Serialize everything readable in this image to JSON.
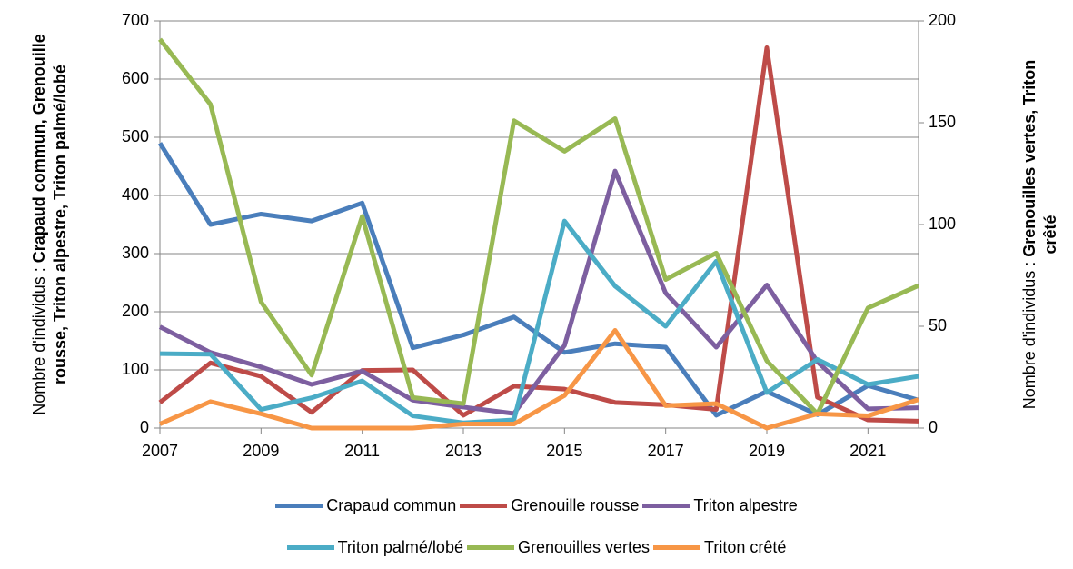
{
  "chart_data": {
    "type": "line",
    "y_label_prefix": "Nombre d'individus  : ",
    "y_label_bold": "Crapaud commun, Grenouille rousse, Triton alpestre, Triton palmé/lobé",
    "y2_label_prefix": "Nombre d'individus : ",
    "y2_label_bold": "Grenouilles vertes, Triton crêté",
    "x": [
      2007,
      2008,
      2009,
      2010,
      2011,
      2012,
      2013,
      2014,
      2015,
      2016,
      2017,
      2018,
      2019,
      2020,
      2021,
      2022
    ],
    "xlim": [
      2007,
      2022
    ],
    "xticks": [
      2007,
      2009,
      2011,
      2013,
      2015,
      2017,
      2019,
      2021
    ],
    "ylim": [
      0,
      700
    ],
    "yticks": [
      0,
      100,
      200,
      300,
      400,
      500,
      600,
      700
    ],
    "y2lim": [
      0,
      200
    ],
    "y2ticks": [
      0,
      50,
      100,
      150,
      200
    ],
    "grid": true,
    "legend": "bottom",
    "series": [
      {
        "name": "Crapaud commun",
        "color": "#4a7ebb",
        "values": [
          490,
          350,
          368,
          356,
          387,
          138,
          160,
          191,
          130,
          145,
          139,
          22,
          63,
          23,
          73,
          48
        ]
      },
      {
        "name": "Grenouille rousse",
        "color": "#be4b48",
        "values": [
          44,
          112,
          89,
          27,
          99,
          100,
          22,
          72,
          67,
          44,
          40,
          32,
          654,
          53,
          14,
          12
        ]
      },
      {
        "name": "Triton alpestre",
        "color": "#7d5fa0",
        "values": [
          174,
          130,
          105,
          75,
          98,
          48,
          36,
          25,
          142,
          442,
          232,
          139,
          246,
          114,
          33,
          35
        ]
      },
      {
        "name": "Triton palmé/lobé",
        "color": "#4bacc6",
        "values": [
          128,
          127,
          32,
          52,
          81,
          21,
          9,
          14,
          356,
          244,
          175,
          287,
          61,
          118,
          75,
          89
        ]
      },
      {
        "name": "Grenouilles vertes",
        "color": "#98b954",
        "axis": "y2",
        "values": [
          191,
          159,
          62,
          26,
          104,
          15,
          12,
          151,
          136,
          152,
          73,
          86,
          33,
          7,
          59,
          70
        ]
      },
      {
        "name": "Triton crêté",
        "color": "#f79646",
        "axis": "y2",
        "values": [
          2,
          13,
          7,
          0,
          0,
          0,
          2,
          2,
          16,
          48,
          11,
          12,
          0,
          7,
          6,
          14
        ]
      }
    ]
  }
}
